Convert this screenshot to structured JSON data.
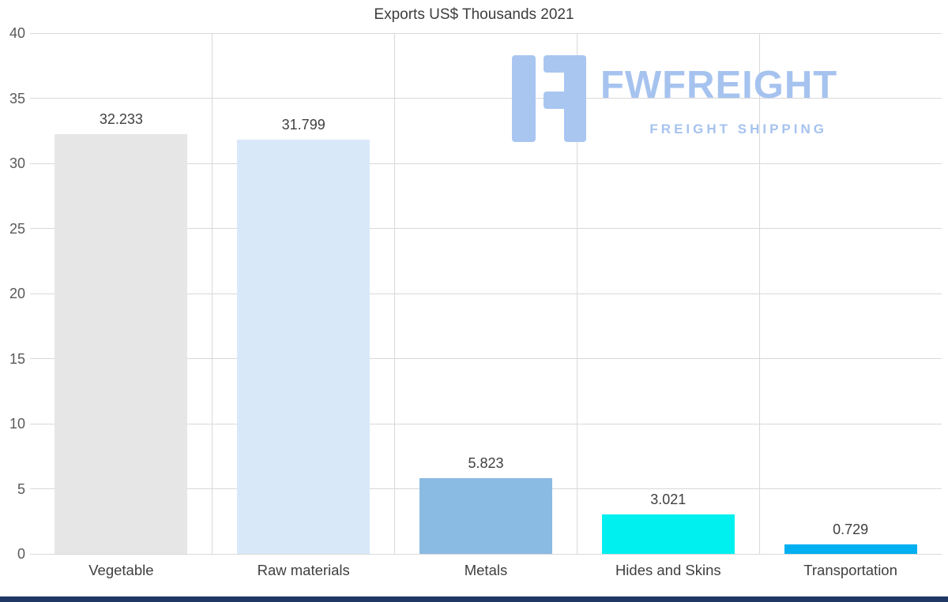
{
  "page": {
    "background_color": "#ffffff",
    "bottom_bar_color": "#1f3864"
  },
  "chart_data": {
    "type": "bar",
    "title": "Exports US$ Thousands 2021",
    "categories": [
      "Vegetable",
      "Raw materials",
      "Metals",
      "Hides and Skins",
      "Transportation"
    ],
    "values": [
      32.233,
      31.799,
      5.823,
      3.021,
      0.729
    ],
    "value_labels": [
      "32.233",
      "31.799",
      "5.823",
      "3.021",
      "0.729"
    ],
    "bar_colors": [
      "#e6e6e6",
      "#d9e8f9",
      "#8abbe3",
      "#00f0f0",
      "#00b0f0"
    ],
    "xlabel": "",
    "ylabel": "",
    "ylim": [
      0,
      40
    ],
    "yticks": [
      0,
      5,
      10,
      15,
      20,
      25,
      30,
      35,
      40
    ],
    "grid": "horizontal gridlines at each y tick, vertical gridlines between categories",
    "gridline_color": "#d9d9d9",
    "legend": "none"
  },
  "watermark": {
    "brand": "FWFREIGHT",
    "tagline": "FREIGHT SHIPPING",
    "color": "#a6c3ef"
  }
}
